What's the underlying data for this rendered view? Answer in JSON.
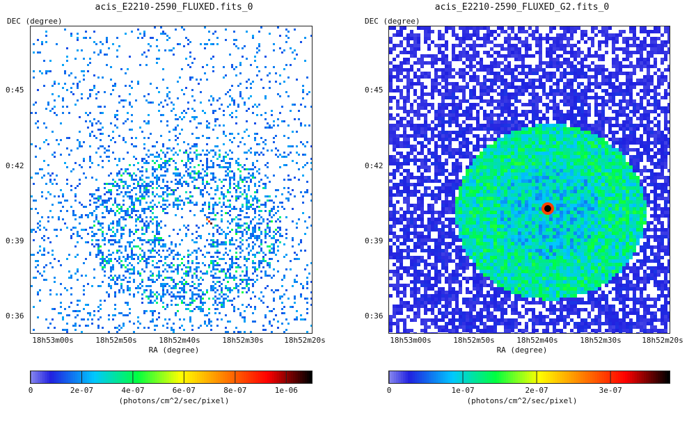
{
  "chart_data": [
    {
      "type": "heatmap",
      "title": "acis_E2210-2590_FLUXED.fits_0",
      "xlabel": "RA (degree)",
      "ylabel": "DEC (degree)",
      "x_ticks": [
        "18h53m00s",
        "18h52m50s",
        "18h52m40s",
        "18h52m30s",
        "18h52m20s"
      ],
      "y_ticks": [
        "0:45",
        "0:42",
        "0:39",
        "0:36"
      ],
      "colorbar": {
        "label": "(photons/cm^2/sec/pixel)",
        "ticks": [
          "0",
          "2e-07",
          "4e-07",
          "6e-07",
          "8e-07",
          "1e-06"
        ],
        "tick_values": [
          0,
          2e-07,
          4e-07,
          6e-07,
          8e-07,
          1e-06
        ],
        "range": [
          0,
          1.1e-06
        ]
      },
      "background": "white",
      "features": {
        "shell_center_fraction": [
          0.62,
          0.66
        ],
        "peak_value": 1.05e-06
      }
    },
    {
      "type": "heatmap",
      "title": "acis_E2210-2590_FLUXED_G2.fits_0",
      "xlabel": "RA (degree)",
      "ylabel": "DEC (degree)",
      "x_ticks": [
        "18h53m00s",
        "18h52m50s",
        "18h52m40s",
        "18h52m30s",
        "18h52m20s"
      ],
      "y_ticks": [
        "0:45",
        "0:42",
        "0:39",
        "0:36"
      ],
      "colorbar": {
        "label": "(photons/cm^2/sec/pixel)",
        "ticks": [
          "0",
          "1e-07",
          "2e-07",
          "3e-07"
        ],
        "tick_values": [
          0,
          1e-07,
          2e-07,
          3e-07
        ],
        "range": [
          0,
          3.8e-07
        ]
      },
      "background": "white",
      "features": {
        "peak_value": 3.8e-07
      }
    }
  ],
  "colormap": [
    "#ffffff",
    "#2020e0",
    "#00c8ff",
    "#00ff40",
    "#ffff00",
    "#ff8000",
    "#ff0000",
    "#000000"
  ]
}
